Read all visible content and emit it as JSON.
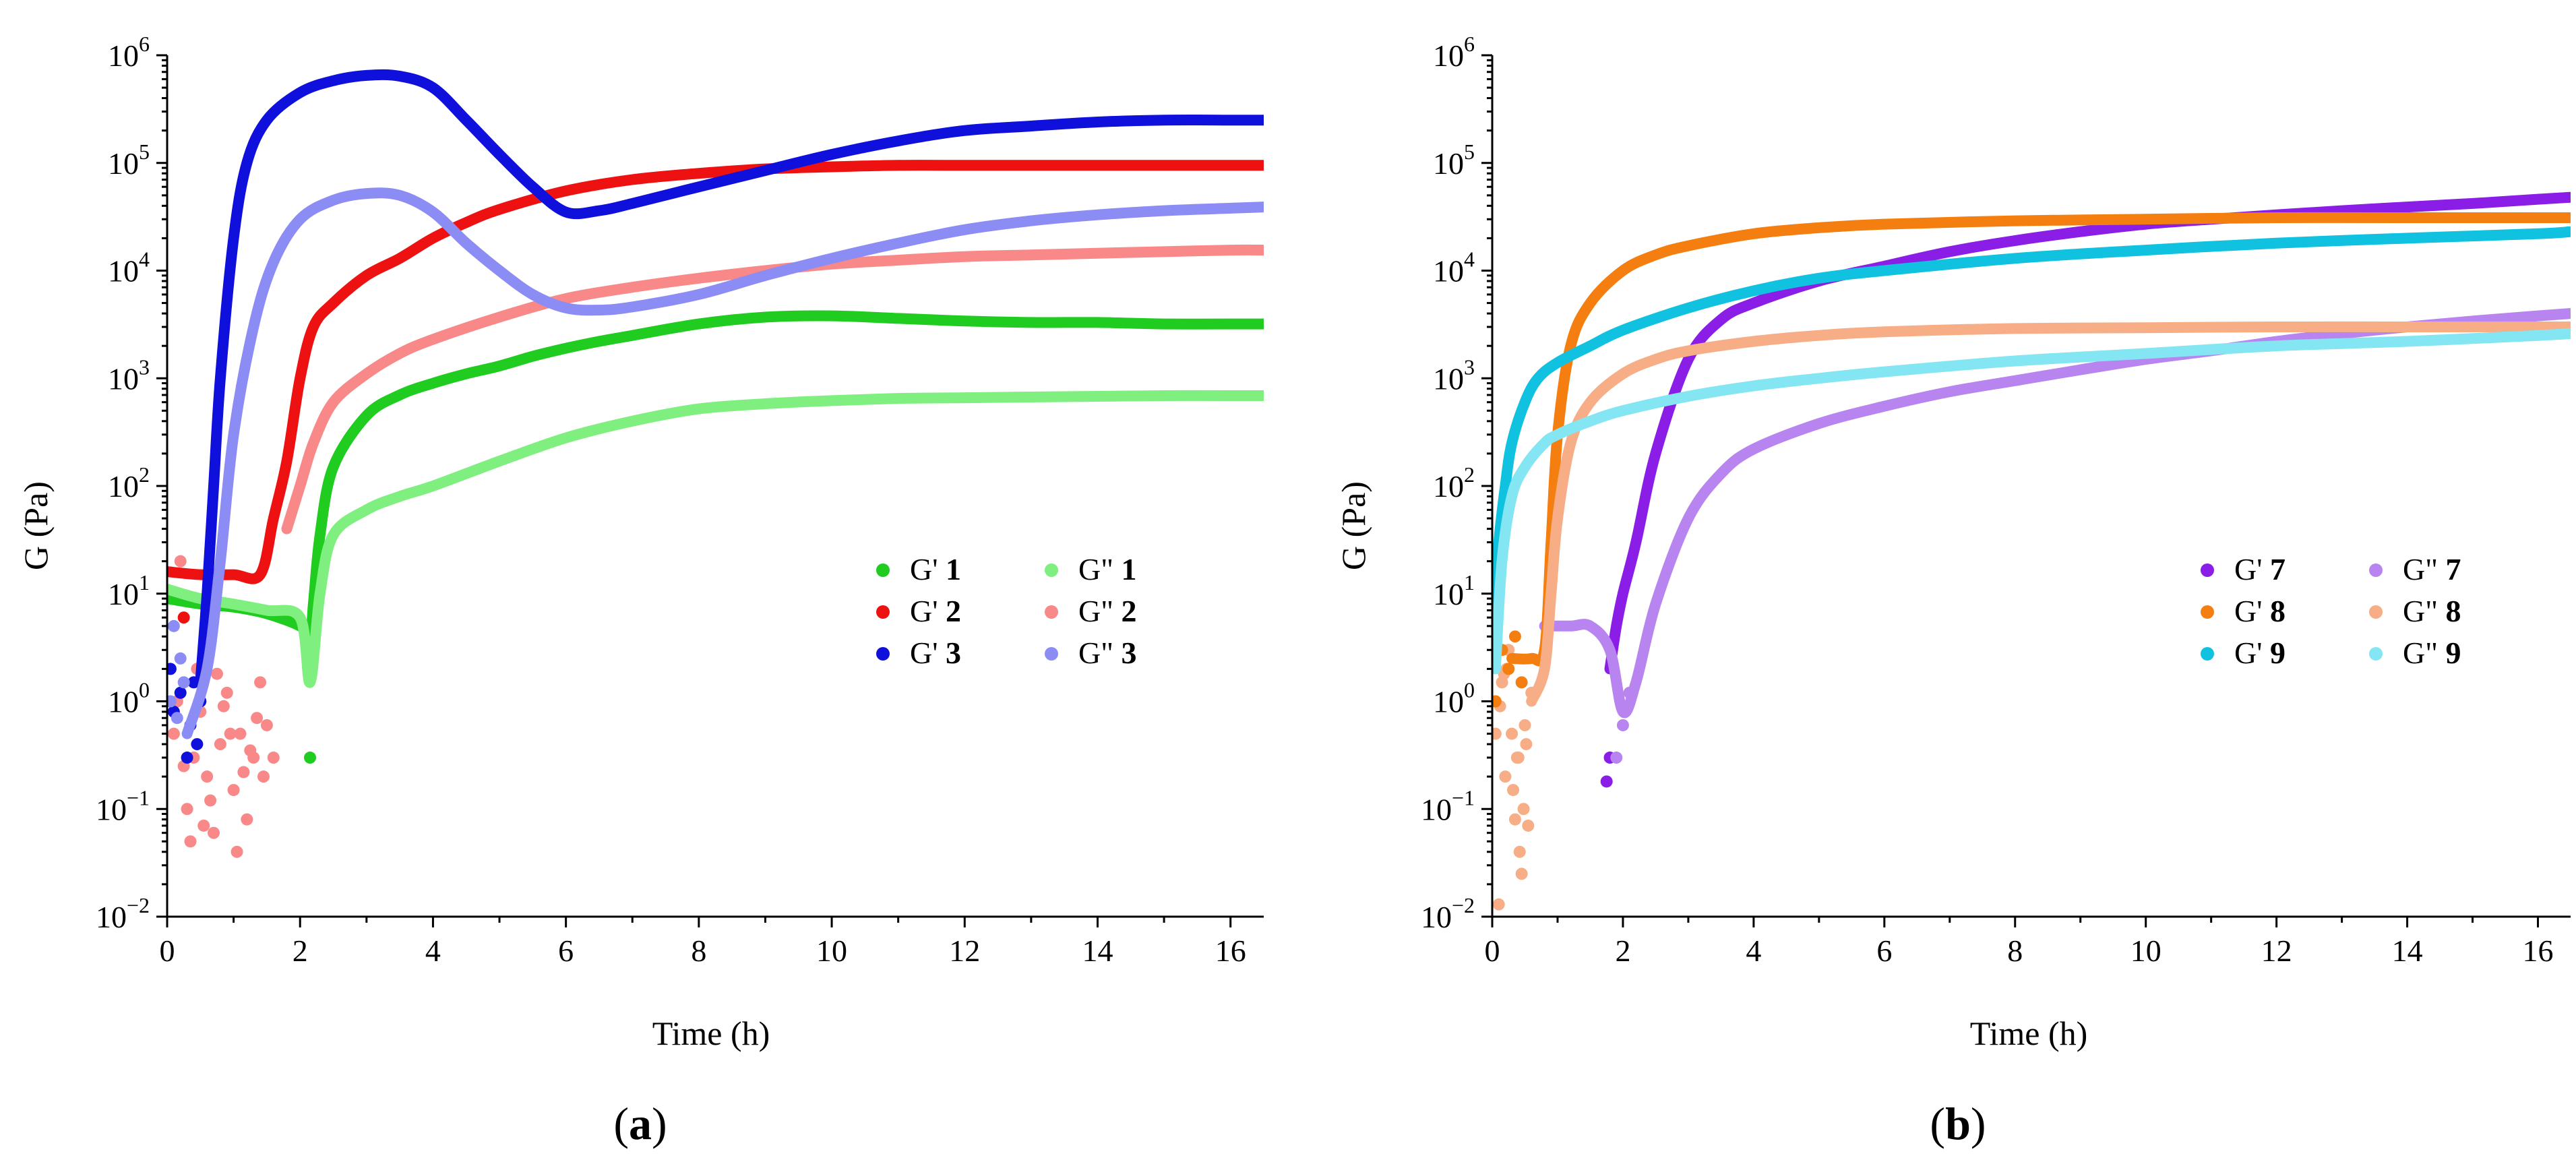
{
  "figure": {
    "captions": [
      {
        "open": "(",
        "letter": "a",
        "close": ")"
      },
      {
        "open": "(",
        "letter": "b",
        "close": ")"
      }
    ]
  },
  "chart_data": [
    {
      "type": "scatter",
      "panel": "a",
      "title": "",
      "xlabel": "Time (h)",
      "ylabel": "G (Pa)",
      "xlim": [
        0,
        16.5
      ],
      "ylim": [
        0.01,
        1000000
      ],
      "yscale": "log",
      "xticks": [
        0,
        2,
        4,
        6,
        8,
        10,
        12,
        14,
        16
      ],
      "ytick_exponents": [
        -2,
        -1,
        0,
        1,
        2,
        3,
        4,
        5,
        6
      ],
      "ytick_base": "10",
      "legend_position": "center-right",
      "legend": [
        {
          "prefix": "G'",
          "number": "1",
          "color": "#1fcc1f"
        },
        {
          "prefix": "G\"",
          "number": "1",
          "color": "#7fef7f"
        },
        {
          "prefix": "G'",
          "number": "2",
          "color": "#ee1111"
        },
        {
          "prefix": "G\"",
          "number": "2",
          "color": "#f98888"
        },
        {
          "prefix": "G'",
          "number": "3",
          "color": "#1010dd"
        },
        {
          "prefix": "G\"",
          "number": "3",
          "color": "#8c8cf5"
        }
      ],
      "series": [
        {
          "name": "G' 1",
          "color": "#1fcc1f",
          "x": [
            0,
            0.5,
            1,
            1.5,
            2,
            2.15,
            2.2,
            2.3,
            2.5,
            3,
            3.5,
            4,
            4.5,
            5,
            5.5,
            6,
            6.5,
            7,
            8,
            9,
            10,
            11,
            12,
            13,
            14,
            15,
            16,
            16.5
          ],
          "y": [
            9,
            8,
            7.5,
            6.5,
            5,
            4,
            8,
            35,
            150,
            450,
            700,
            900,
            1100,
            1300,
            1600,
            1900,
            2200,
            2500,
            3200,
            3700,
            3800,
            3600,
            3400,
            3300,
            3300,
            3200,
            3200,
            3200
          ]
        },
        {
          "name": "G\" 1",
          "color": "#7fef7f",
          "x": [
            0,
            0.5,
            1,
            1.5,
            2,
            2.15,
            2.3,
            2.5,
            3,
            3.5,
            4,
            5,
            6,
            7,
            8,
            9,
            10,
            11,
            12,
            13,
            14,
            15,
            16,
            16.5
          ],
          "y": [
            11,
            9,
            8,
            7,
            6,
            1.5,
            10,
            35,
            60,
            80,
            100,
            170,
            280,
            400,
            520,
            580,
            620,
            650,
            660,
            670,
            680,
            690,
            690,
            690
          ]
        },
        {
          "name": "G' 2",
          "color": "#ee1111",
          "x": [
            0,
            0.5,
            1,
            1.4,
            1.6,
            1.8,
            2.0,
            2.2,
            2.5,
            3,
            3.5,
            4,
            4.5,
            5,
            6,
            7,
            8,
            9,
            10,
            11,
            12,
            13,
            14,
            15,
            16,
            16.5
          ],
          "y": [
            16,
            15,
            15,
            15,
            50,
            170,
            1000,
            3000,
            5000,
            9000,
            13000,
            20000,
            28000,
            37000,
            55000,
            70000,
            80000,
            88000,
            92000,
            95000,
            95000,
            95000,
            95000,
            95000,
            95000,
            95000
          ]
        },
        {
          "name": "G\" 2",
          "color": "#f98888",
          "x": [
            1.8,
            2.0,
            2.2,
            2.5,
            3,
            3.5,
            4,
            5,
            6,
            7,
            8,
            9,
            10,
            11,
            12,
            13,
            14,
            15,
            16,
            16.5
          ],
          "y": [
            40,
            100,
            250,
            600,
            1100,
            1700,
            2300,
            3700,
            5500,
            7000,
            8500,
            10000,
            11500,
            12500,
            13500,
            14000,
            14500,
            15000,
            15500,
            15500
          ]
        },
        {
          "name": "G' 3",
          "color": "#1010dd",
          "x": [
            0.5,
            0.6,
            0.7,
            0.8,
            1.0,
            1.2,
            1.5,
            2.0,
            2.5,
            3.0,
            3.5,
            4.0,
            4.5,
            5.0,
            5.5,
            6.0,
            6.5,
            7,
            8,
            9,
            10,
            11,
            12,
            13,
            14,
            15,
            16,
            16.5
          ],
          "y": [
            1.5,
            10,
            100,
            1000,
            20000,
            100000,
            250000,
            450000,
            580000,
            650000,
            640000,
            500000,
            250000,
            120000,
            60000,
            35000,
            36000,
            42000,
            60000,
            85000,
            120000,
            160000,
            200000,
            220000,
            240000,
            250000,
            250000,
            250000
          ]
        },
        {
          "name": "G\" 3",
          "color": "#8c8cf5",
          "x": [
            0.3,
            0.6,
            0.8,
            1.0,
            1.3,
            1.6,
            2.0,
            2.5,
            3.0,
            3.5,
            4.0,
            4.5,
            5.0,
            5.5,
            6.0,
            6.5,
            7,
            8,
            9,
            10,
            11,
            12,
            13,
            14,
            15,
            16,
            16.5
          ],
          "y": [
            0.5,
            2,
            20,
            300,
            3000,
            12000,
            30000,
            45000,
            52000,
            50000,
            35000,
            18000,
            10000,
            6000,
            4500,
            4300,
            4600,
            6000,
            9000,
            13000,
            18000,
            24000,
            29000,
            33000,
            36000,
            38000,
            39000
          ]
        }
      ],
      "scatter_noise": [
        {
          "color": "#f98888",
          "x": [
            0.1,
            0.2,
            0.3,
            0.35,
            0.4,
            0.5,
            0.6,
            0.7,
            0.8,
            0.9,
            1.0,
            1.1,
            1.2,
            1.3,
            1.4,
            1.5,
            0.25,
            0.45,
            0.65,
            0.85,
            1.05,
            1.25,
            1.45,
            0.15,
            0.55,
            0.75,
            0.95,
            1.15,
            1.35,
            1.6
          ],
          "y": [
            0.5,
            20,
            0.1,
            0.05,
            0.3,
            0.8,
            0.2,
            0.06,
            0.4,
            1.2,
            0.15,
            0.5,
            0.08,
            0.3,
            1.5,
            0.6,
            0.25,
            2,
            0.12,
            0.9,
            0.04,
            0.35,
            0.2,
            1.0,
            0.07,
            1.8,
            0.5,
            0.22,
            0.7,
            0.3
          ]
        },
        {
          "color": "#1010dd",
          "x": [
            0.05,
            0.1,
            0.2,
            0.3,
            0.35,
            0.4,
            0.45,
            0.5
          ],
          "y": [
            2.0,
            0.8,
            1.2,
            0.3,
            0.6,
            1.5,
            0.4,
            1.0
          ]
        },
        {
          "color": "#8c8cf5",
          "x": [
            0.05,
            0.1,
            0.15,
            0.2,
            0.25
          ],
          "y": [
            1.0,
            5.0,
            0.7,
            2.5,
            1.5
          ]
        },
        {
          "color": "#1fcc1f",
          "x": [
            2.15
          ],
          "y": [
            0.3
          ]
        },
        {
          "color": "#ee1111",
          "x": [
            0.25
          ],
          "y": [
            6
          ]
        }
      ]
    },
    {
      "type": "scatter",
      "panel": "b",
      "title": "",
      "xlabel": "Time (h)",
      "ylabel": "G (Pa)",
      "xlim": [
        0,
        16.5
      ],
      "ylim": [
        0.01,
        1000000
      ],
      "yscale": "log",
      "xticks": [
        0,
        2,
        4,
        6,
        8,
        10,
        12,
        14,
        16
      ],
      "ytick_exponents": [
        -2,
        -1,
        0,
        1,
        2,
        3,
        4,
        5,
        6
      ],
      "ytick_base": "10",
      "legend_position": "center-right",
      "legend": [
        {
          "prefix": "G'",
          "number": "7",
          "color": "#8a1de6"
        },
        {
          "prefix": "G\"",
          "number": "7",
          "color": "#b784f0"
        },
        {
          "prefix": "G'",
          "number": "8",
          "color": "#f47f10"
        },
        {
          "prefix": "G\"",
          "number": "8",
          "color": "#f7ad86"
        },
        {
          "prefix": "G'",
          "number": "9",
          "color": "#10c2e0"
        },
        {
          "prefix": "G\"",
          "number": "9",
          "color": "#84e6f2"
        }
      ],
      "series": [
        {
          "name": "G' 7",
          "color": "#8a1de6",
          "x": [
            1.8,
            1.9,
            2.0,
            2.2,
            2.5,
            3.0,
            3.5,
            4,
            5,
            6,
            7,
            8,
            9,
            10,
            11,
            12,
            13,
            14,
            15,
            16,
            16.5
          ],
          "y": [
            2,
            5,
            10,
            30,
            200,
            1500,
            3500,
            5000,
            8000,
            11000,
            15000,
            19000,
            23000,
            27000,
            30000,
            33000,
            36000,
            39000,
            42000,
            46000,
            48000
          ]
        },
        {
          "name": "G\" 7",
          "color": "#b784f0",
          "x": [
            0.8,
            1.2,
            1.5,
            1.8,
            2.0,
            2.2,
            2.5,
            3.0,
            3.5,
            4,
            5,
            6,
            7,
            8,
            9,
            10,
            11,
            12,
            13,
            14,
            15,
            16,
            16.5
          ],
          "y": [
            5,
            5,
            5,
            3,
            0.8,
            1.5,
            8,
            50,
            130,
            220,
            380,
            550,
            750,
            950,
            1200,
            1500,
            1800,
            2200,
            2600,
            3000,
            3400,
            3800,
            4000
          ]
        },
        {
          "name": "G' 8",
          "color": "#f47f10",
          "x": [
            0.3,
            0.6,
            0.8,
            0.9,
            1.0,
            1.2,
            1.5,
            2,
            2.5,
            3,
            4,
            5,
            6,
            8,
            10,
            12,
            14,
            16,
            16.5
          ],
          "y": [
            2.5,
            2.5,
            3,
            30,
            300,
            2000,
            5000,
            10000,
            14000,
            17000,
            22000,
            25000,
            27000,
            29000,
            30000,
            31000,
            31000,
            31000,
            31000
          ]
        },
        {
          "name": "G\" 8",
          "color": "#f7ad86",
          "x": [
            0.6,
            0.8,
            0.9,
            1.0,
            1.2,
            1.5,
            2,
            2.5,
            3,
            4,
            5,
            6,
            8,
            10,
            12,
            14,
            16,
            16.5
          ],
          "y": [
            1.0,
            2,
            10,
            50,
            250,
            600,
            1100,
            1500,
            1800,
            2200,
            2500,
            2700,
            2900,
            2950,
            3000,
            3000,
            3000,
            3000
          ]
        },
        {
          "name": "G' 9",
          "color": "#10c2e0",
          "x": [
            0,
            0.1,
            0.2,
            0.3,
            0.5,
            0.7,
            1.0,
            1.5,
            2,
            3,
            4,
            5,
            6,
            8,
            10,
            12,
            14,
            16,
            16.5
          ],
          "y": [
            5,
            30,
            100,
            250,
            600,
            1000,
            1400,
            2000,
            2800,
            4500,
            6500,
            8500,
            10000,
            13000,
            15500,
            18000,
            20000,
            22000,
            23000
          ]
        },
        {
          "name": "G\" 9",
          "color": "#84e6f2",
          "x": [
            0.05,
            0.15,
            0.3,
            0.5,
            0.8,
            1.0,
            1.5,
            2,
            3,
            4,
            5,
            6,
            8,
            10,
            12,
            14,
            16,
            16.5
          ],
          "y": [
            2,
            20,
            80,
            150,
            250,
            300,
            400,
            500,
            680,
            850,
            1000,
            1150,
            1450,
            1700,
            2000,
            2200,
            2500,
            2600
          ]
        }
      ],
      "scatter_noise": [
        {
          "color": "#f7ad86",
          "x": [
            0.05,
            0.1,
            0.15,
            0.2,
            0.25,
            0.3,
            0.35,
            0.4,
            0.45,
            0.5,
            0.55,
            0.6,
            0.12,
            0.22,
            0.32,
            0.42,
            0.52,
            0.18,
            0.38,
            0.48
          ],
          "y": [
            0.5,
            0.013,
            1.5,
            0.2,
            3,
            0.5,
            0.08,
            0.3,
            0.025,
            0.6,
            0.07,
            1.2,
            0.9,
            2.0,
            0.15,
            0.04,
            0.4,
            1.8,
            0.3,
            0.1
          ]
        },
        {
          "color": "#8a1de6",
          "x": [
            1.75,
            1.8
          ],
          "y": [
            0.18,
            0.3
          ]
        },
        {
          "color": "#b784f0",
          "x": [
            1.9,
            2.0,
            2.1
          ],
          "y": [
            0.3,
            0.6,
            1.2
          ]
        },
        {
          "color": "#f47f10",
          "x": [
            0.05,
            0.15,
            0.25,
            0.35,
            0.45
          ],
          "y": [
            1.0,
            3.0,
            2.0,
            4.0,
            1.5
          ]
        }
      ]
    }
  ]
}
